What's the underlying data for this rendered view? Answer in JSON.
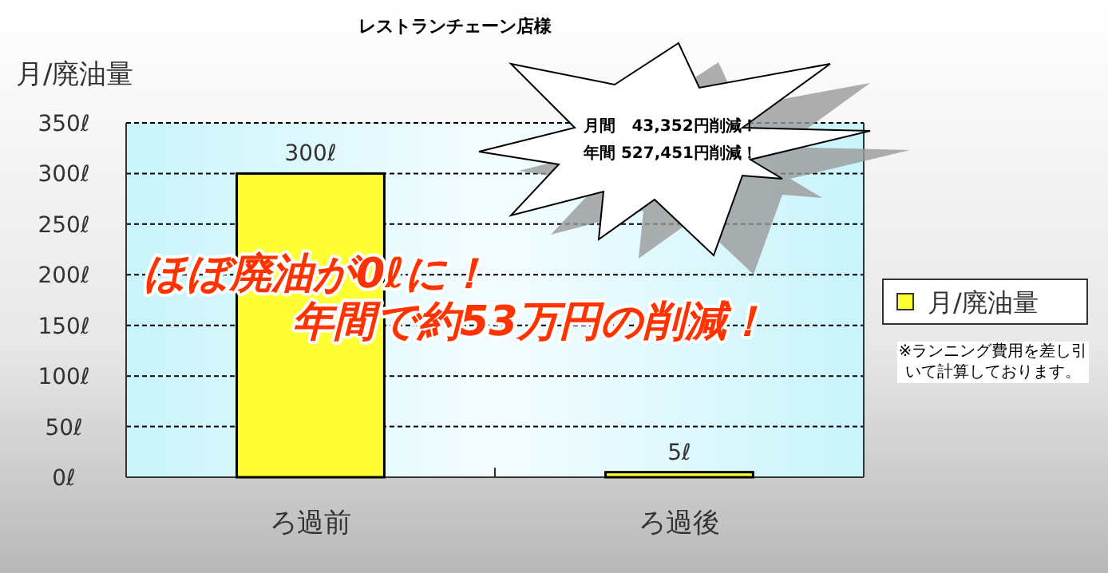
{
  "chart_data": {
    "type": "bar",
    "title": "レストランチェーン店様",
    "ylabel": "月/廃油量",
    "categories": [
      "ろ過前",
      "ろ過後"
    ],
    "series": [
      {
        "name": "月/廃油量",
        "color": "#ffff33",
        "values": [
          300,
          5
        ],
        "value_labels": [
          "300ℓ",
          "5ℓ"
        ]
      }
    ],
    "ylim": [
      0,
      350
    ],
    "yticks": [
      {
        "value": 0,
        "label": "0ℓ"
      },
      {
        "value": 50,
        "label": "50ℓ"
      },
      {
        "value": 100,
        "label": "100ℓ"
      },
      {
        "value": 150,
        "label": "150ℓ"
      },
      {
        "value": 200,
        "label": "200ℓ"
      },
      {
        "value": 250,
        "label": "250ℓ"
      },
      {
        "value": 300,
        "label": "300ℓ"
      },
      {
        "value": 350,
        "label": "350ℓ"
      }
    ],
    "grid": "y",
    "legend": "right",
    "annotations": [
      "月間　43,352円削減！",
      "年間 527,451円削減！",
      "ほぼ廃油が0ℓに！",
      "年間で約53万円の削減！",
      "※ランニング費用を差し引いて計算しております。"
    ]
  }
}
